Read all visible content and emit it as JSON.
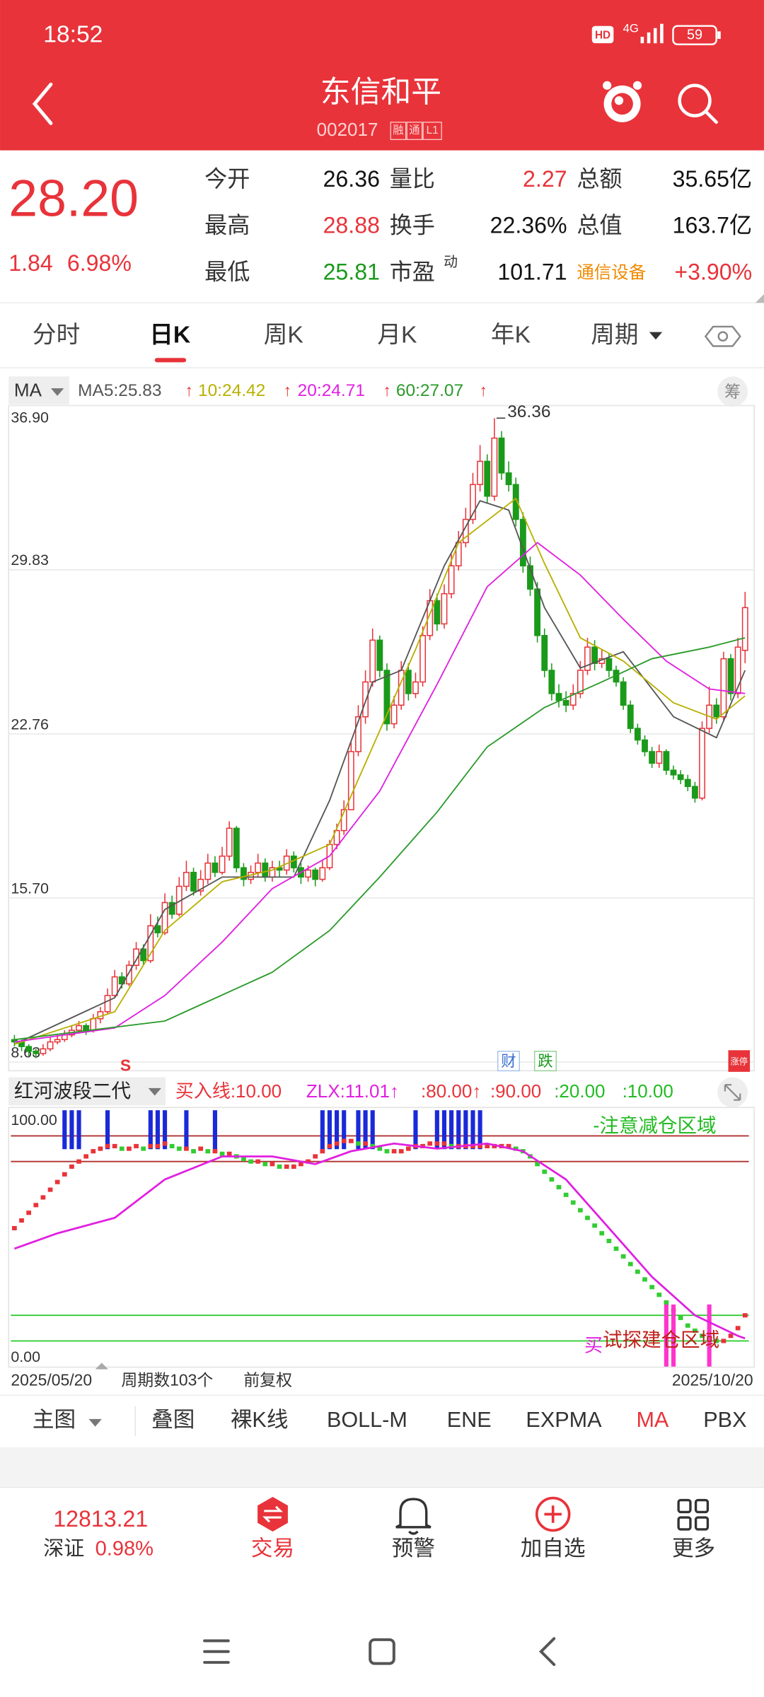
{
  "status_bar": {
    "time": "18:52",
    "hd": "HD",
    "network": "4G",
    "battery": "59"
  },
  "header": {
    "title": "东信和平",
    "code": "002017",
    "badges": [
      "融",
      "通",
      "L1"
    ]
  },
  "quote": {
    "price": "28.20",
    "change": "1.84",
    "change_pct": "6.98%",
    "fields": [
      {
        "label": "今开",
        "value": "26.36",
        "color": "#111111"
      },
      {
        "label": "量比",
        "value": "2.27",
        "color": "#e8333a"
      },
      {
        "label": "总额",
        "value": "35.65亿",
        "color": "#111111"
      },
      {
        "label": "最高",
        "value": "28.88",
        "color": "#e8333a"
      },
      {
        "label": "换手",
        "value": "22.36%",
        "color": "#111111"
      },
      {
        "label": "总值",
        "value": "163.7亿",
        "color": "#111111"
      },
      {
        "label": "最低",
        "value": "25.81",
        "color": "#1a9a1a"
      },
      {
        "label": "市盈",
        "label_sup": "动",
        "value": "101.71",
        "color": "#111111"
      },
      {
        "label": "通信设备",
        "value": "+3.90%",
        "color": "#e8333a"
      }
    ]
  },
  "tabs": [
    "分时",
    "日K",
    "周K",
    "月K",
    "年K",
    "周期"
  ],
  "ma_legend": {
    "selector": "MA",
    "arrow": "↑",
    "items": [
      {
        "text": "MA5:25.83",
        "color": "#555555"
      },
      {
        "text": "10:24.42",
        "color": "#b8b000"
      },
      {
        "text": "20:24.71",
        "color": "#e020e0"
      },
      {
        "text": "60:27.07",
        "color": "#2a9a2a"
      }
    ]
  },
  "chip_button": "筹",
  "kline": {
    "ylim": [
      8.63,
      36.9
    ],
    "yticks": [
      8.63,
      {
        "value": 15.7,
        "label": "15.70"
      },
      22.76,
      29.83,
      {
        "value": 36.9,
        "label": "36.90"
      }
    ],
    "grid": true,
    "up_color": "#e8333a",
    "down_color": "#1a9a1a",
    "candles": [
      [
        9.6,
        9.8,
        9.3,
        9.5
      ],
      [
        9.5,
        9.6,
        9.1,
        9.3
      ],
      [
        9.3,
        9.4,
        8.9,
        9.1
      ],
      [
        9.1,
        9.2,
        8.8,
        9.0
      ],
      [
        9.0,
        9.4,
        8.9,
        9.2
      ],
      [
        9.2,
        9.7,
        9.1,
        9.5
      ],
      [
        9.5,
        9.8,
        9.4,
        9.6
      ],
      [
        9.6,
        10.0,
        9.5,
        9.8
      ],
      [
        9.8,
        10.2,
        9.7,
        10.0
      ],
      [
        10.0,
        10.4,
        9.9,
        10.2
      ],
      [
        10.2,
        10.3,
        9.8,
        10.0
      ],
      [
        10.0,
        10.7,
        9.9,
        10.5
      ],
      [
        10.5,
        11.0,
        10.3,
        10.8
      ],
      [
        10.8,
        11.8,
        10.7,
        11.5
      ],
      [
        11.5,
        12.6,
        11.4,
        12.3
      ],
      [
        12.3,
        12.5,
        11.8,
        12.0
      ],
      [
        12.0,
        13.0,
        11.9,
        12.8
      ],
      [
        12.8,
        13.8,
        12.6,
        13.5
      ],
      [
        13.5,
        13.7,
        12.8,
        13.0
      ],
      [
        13.0,
        15.0,
        12.9,
        14.5
      ],
      [
        14.5,
        14.9,
        14.0,
        14.2
      ],
      [
        14.2,
        15.9,
        14.1,
        15.5
      ],
      [
        15.5,
        15.8,
        14.8,
        15.0
      ],
      [
        15.0,
        16.6,
        14.9,
        16.2
      ],
      [
        16.2,
        17.3,
        16.0,
        16.8
      ],
      [
        16.8,
        17.0,
        15.8,
        16.0
      ],
      [
        16.0,
        16.9,
        15.8,
        16.5
      ],
      [
        16.5,
        17.6,
        16.3,
        17.2
      ],
      [
        17.2,
        17.5,
        16.6,
        16.8
      ],
      [
        16.8,
        17.9,
        16.7,
        17.5
      ],
      [
        17.5,
        19.0,
        17.3,
        18.7
      ],
      [
        18.7,
        18.8,
        16.8,
        17.0
      ],
      [
        17.0,
        17.2,
        16.2,
        16.5
      ],
      [
        16.5,
        17.1,
        16.3,
        16.8
      ],
      [
        16.8,
        17.6,
        16.6,
        17.2
      ],
      [
        17.2,
        17.4,
        16.4,
        16.6
      ],
      [
        16.6,
        17.3,
        16.4,
        17.0
      ],
      [
        17.0,
        17.3,
        16.6,
        16.9
      ],
      [
        16.9,
        17.8,
        16.7,
        17.5
      ],
      [
        17.5,
        17.7,
        16.8,
        17.0
      ],
      [
        17.0,
        17.2,
        16.3,
        16.6
      ],
      [
        16.6,
        17.1,
        16.4,
        16.9
      ],
      [
        16.9,
        17.0,
        16.2,
        16.5
      ],
      [
        16.5,
        17.3,
        16.4,
        17.0
      ],
      [
        17.0,
        18.2,
        16.9,
        18.0
      ],
      [
        18.0,
        18.9,
        17.8,
        18.6
      ],
      [
        18.6,
        19.9,
        18.4,
        19.5
      ],
      [
        19.5,
        22.4,
        19.5,
        22.0
      ],
      [
        22.0,
        24.0,
        21.8,
        23.5
      ],
      [
        23.5,
        25.5,
        23.2,
        25.0
      ],
      [
        25.0,
        27.3,
        24.8,
        26.8
      ],
      [
        26.8,
        27.0,
        25.2,
        25.5
      ],
      [
        25.5,
        25.8,
        22.9,
        23.2
      ],
      [
        23.2,
        24.4,
        23.0,
        24.0
      ],
      [
        24.0,
        25.9,
        23.8,
        25.5
      ],
      [
        25.5,
        25.8,
        24.2,
        24.5
      ],
      [
        24.5,
        25.4,
        24.3,
        25.0
      ],
      [
        25.0,
        27.4,
        24.8,
        27.0
      ],
      [
        27.0,
        29.0,
        26.8,
        28.5
      ],
      [
        28.5,
        28.8,
        27.2,
        27.5
      ],
      [
        27.5,
        29.2,
        27.3,
        28.8
      ],
      [
        28.8,
        30.5,
        28.6,
        30.0
      ],
      [
        30.0,
        31.5,
        29.8,
        31.0
      ],
      [
        31.0,
        32.5,
        30.8,
        32.0
      ],
      [
        32.0,
        34.0,
        31.8,
        33.5
      ],
      [
        33.5,
        35.2,
        33.2,
        34.5
      ],
      [
        34.5,
        34.8,
        32.7,
        33.0
      ],
      [
        33.0,
        36.36,
        32.8,
        35.5
      ],
      [
        35.5,
        35.8,
        33.7,
        34.0
      ],
      [
        34.0,
        34.5,
        33.2,
        33.5
      ],
      [
        33.5,
        33.8,
        31.7,
        32.0
      ],
      [
        32.0,
        32.3,
        29.7,
        30.0
      ],
      [
        30.0,
        30.4,
        28.7,
        29.0
      ],
      [
        29.0,
        29.3,
        26.7,
        27.0
      ],
      [
        27.0,
        27.3,
        25.2,
        25.5
      ],
      [
        25.5,
        25.8,
        24.2,
        24.5
      ],
      [
        24.5,
        24.9,
        23.9,
        24.2
      ],
      [
        24.2,
        24.6,
        23.7,
        24.0
      ],
      [
        24.0,
        24.9,
        23.8,
        24.5
      ],
      [
        24.5,
        25.9,
        24.3,
        25.5
      ],
      [
        25.5,
        26.9,
        25.3,
        26.5
      ],
      [
        26.5,
        26.8,
        25.5,
        25.8
      ],
      [
        25.8,
        26.4,
        25.6,
        26.0
      ],
      [
        26.0,
        26.2,
        25.2,
        25.5
      ],
      [
        25.5,
        25.7,
        24.8,
        25.0
      ],
      [
        25.0,
        25.2,
        23.8,
        24.0
      ],
      [
        24.0,
        24.2,
        22.8,
        23.0
      ],
      [
        23.0,
        23.2,
        22.3,
        22.5
      ],
      [
        22.5,
        22.7,
        21.8,
        22.0
      ],
      [
        22.0,
        22.2,
        21.3,
        21.5
      ],
      [
        21.5,
        22.3,
        21.3,
        22.0
      ],
      [
        22.0,
        22.1,
        21.0,
        21.2
      ],
      [
        21.2,
        21.4,
        20.8,
        21.0
      ],
      [
        21.0,
        21.2,
        20.6,
        20.8
      ],
      [
        20.8,
        21.0,
        20.3,
        20.5
      ],
      [
        20.5,
        20.7,
        19.8,
        20.0
      ],
      [
        20.0,
        23.3,
        19.9,
        23.0
      ],
      [
        23.0,
        24.8,
        22.8,
        24.0
      ],
      [
        24.0,
        24.3,
        23.2,
        23.5
      ],
      [
        23.5,
        26.3,
        23.3,
        26.0
      ],
      [
        26.0,
        26.2,
        24.2,
        24.5
      ],
      [
        24.5,
        26.9,
        24.3,
        26.5
      ],
      [
        26.36,
        28.88,
        25.81,
        28.2
      ]
    ],
    "ma": [
      {
        "name": "MA5",
        "color": "#555555",
        "x": [
          0,
          14,
          21,
          29,
          39,
          44,
          50,
          54,
          60,
          65,
          69,
          74,
          79,
          85,
          92,
          98,
          102
        ],
        "values": [
          9.4,
          11.4,
          15.2,
          16.6,
          16.6,
          19.9,
          25.0,
          25.5,
          30.0,
          32.8,
          32.4,
          28.2,
          25.6,
          26.3,
          23.5,
          22.6,
          25.5
        ]
      },
      {
        "name": "MA10",
        "color": "#b8b000",
        "x": [
          0,
          14,
          21,
          29,
          36,
          44,
          50,
          56,
          62,
          70,
          74,
          79,
          85,
          92,
          98,
          102
        ],
        "values": [
          9.4,
          10.8,
          14.3,
          16.4,
          16.9,
          18.0,
          22.2,
          26.4,
          31.0,
          32.9,
          30.1,
          26.9,
          25.9,
          24.1,
          23.4,
          24.4
        ]
      },
      {
        "name": "MA20",
        "color": "#e020e0",
        "x": [
          0,
          14,
          21,
          29,
          36,
          44,
          51,
          59,
          66,
          73,
          79,
          85,
          91,
          97,
          102
        ],
        "values": [
          9.5,
          10.1,
          11.5,
          13.8,
          16.1,
          17.5,
          20.3,
          24.9,
          29.1,
          31.0,
          29.6,
          27.7,
          25.9,
          24.7,
          24.5
        ]
      },
      {
        "name": "MA60",
        "color": "#2a9a2a",
        "x": [
          0,
          21,
          36,
          44,
          51,
          59,
          66,
          74,
          82,
          89,
          97,
          102
        ],
        "values": [
          9.6,
          10.4,
          12.5,
          14.3,
          16.6,
          19.4,
          22.2,
          23.9,
          25.0,
          26.0,
          26.5,
          26.9
        ]
      }
    ],
    "peak_label": 36.36,
    "marker_s": "S",
    "badge_cai": "财",
    "badge_die": "跌",
    "badge_limit": "涨停"
  },
  "indicator": {
    "title": "红河波段二代",
    "params": [
      {
        "text": "买入线:10.00",
        "color": "#e8333a"
      },
      {
        "text": "ZLX:11.01↑",
        "color": "#e020e0"
      },
      {
        "text": ":80.00↑",
        "color": "#e8333a"
      },
      {
        "text": ":90.00",
        "color": "#e8333a"
      },
      {
        "text": ":20.00",
        "color": "#22bb22"
      },
      {
        "text": ":10.00",
        "color": "#22bb22"
      }
    ],
    "ylim": [
      0,
      100
    ],
    "yticks": [
      {
        "value": 0,
        "label": "0.00"
      },
      {
        "value": 100,
        "label": "100.00"
      }
    ],
    "levels": [
      {
        "value": 90,
        "color": "#b03030"
      },
      {
        "value": 80,
        "color": "#b03030"
      },
      {
        "value": 20,
        "color": "#33cc33"
      },
      {
        "value": 10,
        "color": "#33cc33"
      }
    ],
    "bars": [
      54,
      57,
      60,
      63,
      66,
      69,
      72,
      75,
      78,
      80,
      82,
      84,
      85,
      86,
      86,
      85,
      85,
      86,
      85,
      86,
      86,
      87,
      86,
      85,
      85,
      84,
      85,
      84,
      84,
      83,
      83,
      82,
      81,
      80,
      80,
      79,
      79,
      78,
      78,
      78,
      79,
      80,
      82,
      84,
      86,
      87,
      88,
      88,
      87,
      87,
      86,
      85,
      84,
      84,
      84,
      85,
      86,
      86,
      87,
      87,
      87,
      86,
      86,
      86,
      86,
      86,
      86,
      86,
      86,
      86,
      85,
      84,
      82,
      79,
      76,
      73,
      70,
      67,
      64,
      61,
      58,
      55,
      52,
      49,
      46,
      43,
      40,
      37,
      34,
      31,
      28,
      25,
      22,
      19,
      16,
      14,
      12,
      11,
      10,
      10,
      12,
      15,
      20
    ],
    "line": {
      "color": "#e020e0",
      "x": [
        0,
        6,
        14,
        21,
        29,
        36,
        42,
        47,
        53,
        59,
        66,
        71,
        77,
        83,
        89,
        95,
        101,
        102
      ],
      "values": [
        46,
        52,
        58,
        73,
        82,
        82,
        79,
        84,
        87,
        85,
        87,
        84,
        73,
        54,
        35,
        20,
        12,
        11
      ]
    },
    "blue_signals": [
      7,
      8,
      9,
      13,
      19,
      20,
      21,
      24,
      28,
      43,
      44,
      45,
      46,
      48,
      49,
      50,
      56,
      59,
      60,
      61,
      62,
      63,
      64,
      65
    ],
    "pink_signals": [
      91,
      92,
      97
    ],
    "top_note": "-注意减仓区域",
    "bottom_note": "试探建仓区域",
    "buy_mark": "买",
    "date_start": "2025/05/20",
    "period_count": "周期数103个",
    "adjust": "前复权",
    "date_end": "2025/10/20"
  },
  "indicator_tabs": [
    "主图",
    "叠图",
    "裸K线",
    "BOLL-M",
    "ENE",
    "EXPMA",
    "MA",
    "PBX"
  ],
  "bottom_nav": {
    "index_value": "12813.21",
    "index_name": "深证",
    "index_change": "0.98%",
    "items": [
      "交易",
      "预警",
      "加自选",
      "更多"
    ]
  }
}
